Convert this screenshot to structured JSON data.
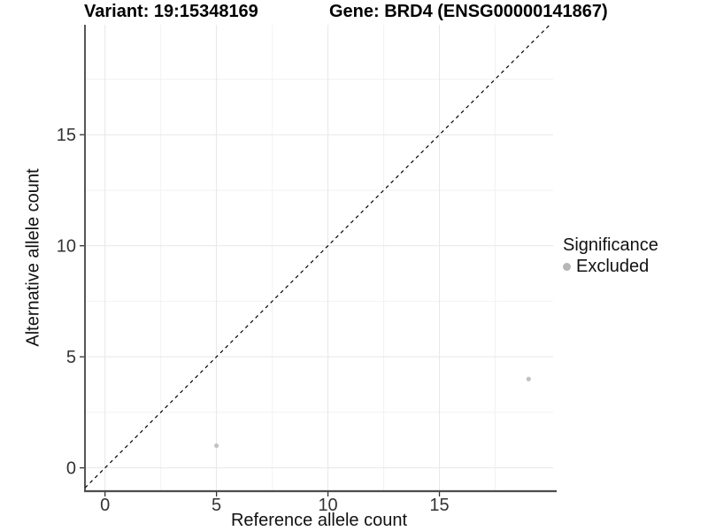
{
  "figure": {
    "titles": {
      "variant": "Variant: 19:15348169",
      "gene": "Gene: BRD4 (ENSG00000141867)"
    },
    "x_axis_label": "Reference allele count",
    "y_axis_label": "Alternative allele count",
    "legend": {
      "title": "Significance",
      "items": [
        {
          "label": "Excluded",
          "color": "#b6b6b6"
        }
      ]
    }
  },
  "chart_data": {
    "type": "scatter",
    "title": "Variant: 19:15348169   Gene: BRD4 (ENSG00000141867)",
    "xlabel": "Reference allele count",
    "ylabel": "Alternative allele count",
    "series": [
      {
        "name": "Excluded",
        "color": "#c2c2c2",
        "points": [
          {
            "x": 5,
            "y": 1
          },
          {
            "x": 19,
            "y": 4
          }
        ]
      }
    ],
    "reference_line": {
      "type": "identity",
      "slope": 1,
      "intercept": 0,
      "style": "dashed",
      "color": "#000000"
    },
    "xlim": [
      -0.9,
      20.1
    ],
    "ylim": [
      -1.05,
      19.95
    ],
    "x_ticks": [
      0,
      5,
      10,
      15
    ],
    "y_ticks": [
      0,
      5,
      10,
      15
    ],
    "x_minor_ticks": [
      2.5,
      7.5,
      12.5,
      17.5
    ],
    "y_minor_ticks": [
      2.5,
      7.5,
      12.5,
      17.5
    ],
    "grid": {
      "major_color": "#e7e7e7",
      "minor_color": "#f2f2f2"
    },
    "axis_line_color": "#4d4d4d",
    "tick_color": "#333333",
    "legend_position": "right",
    "legend_title": "Significance"
  }
}
